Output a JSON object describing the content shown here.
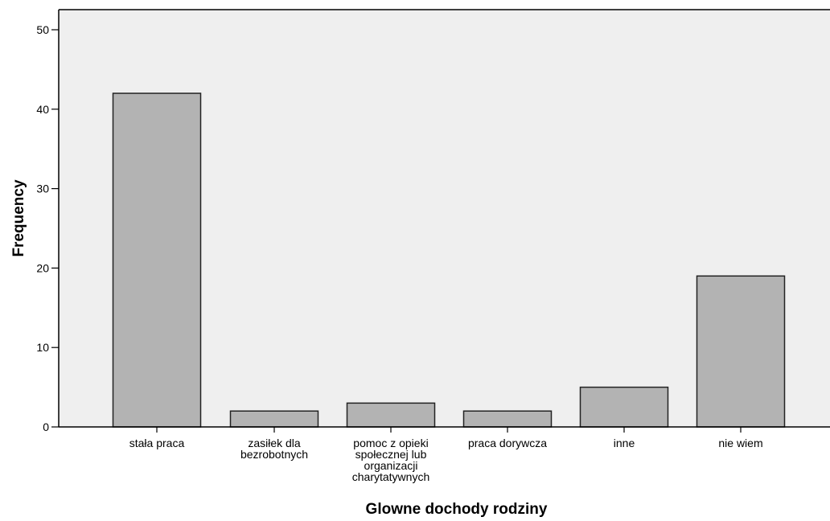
{
  "chart_data": {
    "type": "bar",
    "categories": [
      [
        "stała praca"
      ],
      [
        "zasiłek dla",
        "bezrobotnych"
      ],
      [
        "pomoc z opieki",
        "społecznej lub",
        "organizacji",
        "charytatywnych"
      ],
      [
        "praca dorywcza"
      ],
      [
        "inne"
      ],
      [
        "nie wiem"
      ]
    ],
    "values": [
      42,
      2,
      3,
      2,
      5,
      19
    ],
    "title": "",
    "xlabel": "Glowne dochody rodziny",
    "ylabel": "Frequency",
    "ylim": [
      0,
      50
    ],
    "yticks": [
      0,
      10,
      20,
      30,
      40,
      50
    ],
    "grid": false,
    "legend": "none",
    "colors": {
      "plot_background": "#efefef",
      "bar_fill": "#b3b3b3",
      "bar_stroke": "#222222",
      "axis": "#000000"
    }
  }
}
